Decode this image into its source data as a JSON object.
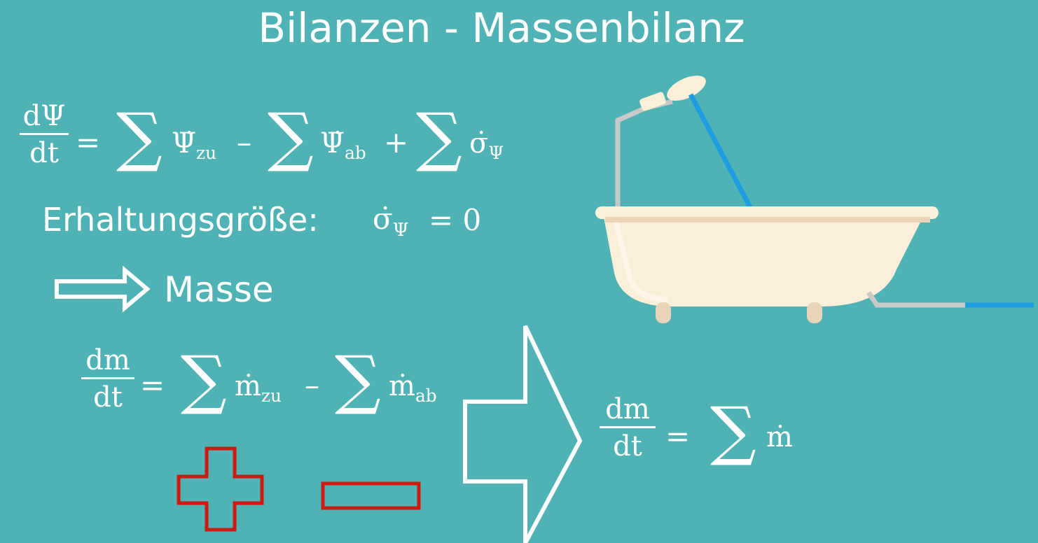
{
  "title": "Bilanzen - Massenbilanz",
  "general_balance": {
    "numerator": "dΨ",
    "denominator": "dt",
    "equals": "=",
    "sum_symbol": "∑",
    "term_in": "Ψ̇",
    "term_in_sub": "zu",
    "minus": "–",
    "term_out": "Ψ̇",
    "term_out_sub": "ab",
    "plus": "+",
    "term_source": "σ̇",
    "term_source_sub": "Ψ"
  },
  "conservation": {
    "label": "Erhaltungsgröße:",
    "symbol": "σ̇",
    "symbol_sub": "Ψ",
    "equals_zero": "= 0"
  },
  "mass_label": "Masse",
  "mass_balance": {
    "numerator": "dm",
    "denominator": "dt",
    "equals": "=",
    "sum_symbol": "∑",
    "term_in": "ṁ",
    "term_in_sub": "zu",
    "minus": "–",
    "term_out": "ṁ",
    "term_out_sub": "ab"
  },
  "result_balance": {
    "numerator": "dm",
    "denominator": "dt",
    "equals": "=",
    "sum_symbol": "∑",
    "term": "ṁ"
  },
  "colors": {
    "background": "#4fb2b5",
    "text": "#ffffff",
    "sign_red": "#cc1a10",
    "tub": "#fcefd9",
    "pipe": "#c9c9c9",
    "water": "#1e9ee0"
  },
  "icons": {
    "arrow_small": "double-arrow-right-icon",
    "arrow_big": "big-arrow-right-icon",
    "plus_sign": "plus-icon",
    "minus_sign": "minus-icon",
    "bathtub": "bathtub-illustration"
  }
}
